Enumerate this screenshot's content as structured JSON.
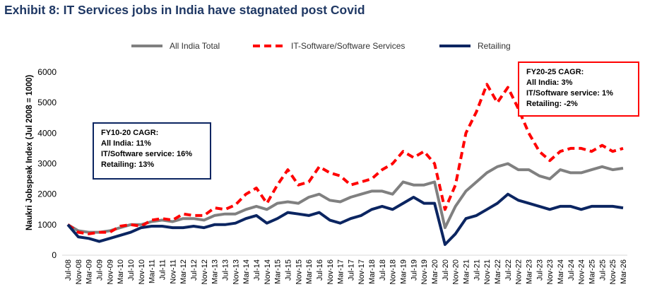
{
  "title": "Exhibit 8: IT Services jobs in India have stagnated post Covid",
  "annotations": [
    {
      "lines": [
        "FY10-20 CAGR:",
        "All India: 11%",
        "IT/Software service: 16%",
        "Retailing: 13%"
      ],
      "border_color": "#0b2561"
    },
    {
      "lines": [
        "FY20-25 CAGR:",
        "All India: 3%",
        "IT/Software service: 1%",
        "Retailing: -2%"
      ],
      "border_color": "#ff0000"
    }
  ],
  "chart_data": {
    "type": "line",
    "title": "Exhibit 8: IT Services jobs in India have stagnated post Covid",
    "xlabel": "",
    "ylabel": "Naukri Jobspeak Index (Jul 2008 = 1000)",
    "ylim": [
      0,
      6000
    ],
    "yticks": [
      "0",
      "1000",
      "2000",
      "3000",
      "4000",
      "5000",
      "6000"
    ],
    "grid": false,
    "legend": "top",
    "x": [
      "Jul-08",
      "Nov-08",
      "Mar-09",
      "Jul-09",
      "Nov-09",
      "Mar-10",
      "Jul-10",
      "Nov-10",
      "Mar-11",
      "Jul-11",
      "Nov-11",
      "Mar-12",
      "Jul-12",
      "Nov-12",
      "Mar-13",
      "Jul-13",
      "Nov-13",
      "Mar-14",
      "Jul-14",
      "Nov-14",
      "Mar-15",
      "Jul-15",
      "Nov-15",
      "Mar-16",
      "Jul-16",
      "Nov-16",
      "Mar-17",
      "Jul-17",
      "Nov-17",
      "Mar-18",
      "Jul-18",
      "Nov-18",
      "Mar-19",
      "Jul-19",
      "Nov-19",
      "Mar-20",
      "Jul-20",
      "Nov-20",
      "Mar-21",
      "Jul-21",
      "Nov-21",
      "Mar-22",
      "Jul-22",
      "Nov-22",
      "Mar-23",
      "Jul-23",
      "Nov-23",
      "Mar-24",
      "Jul-24",
      "Nov-24",
      "Mar-25",
      "Jul-25",
      "Nov-25",
      "Mar-26"
    ],
    "series": [
      {
        "name": "All India Total",
        "color": "#808080",
        "style": "solid",
        "values": [
          1000,
          800,
          750,
          750,
          800,
          900,
          1000,
          1000,
          1100,
          1150,
          1100,
          1200,
          1200,
          1150,
          1300,
          1350,
          1350,
          1500,
          1600,
          1500,
          1700,
          1750,
          1700,
          1900,
          2000,
          1800,
          1750,
          1900,
          2000,
          2100,
          2100,
          2000,
          2400,
          2300,
          2300,
          2400,
          900,
          1600,
          2100,
          2400,
          2700,
          2900,
          3000,
          2800,
          2800,
          2600,
          2500,
          2800,
          2700,
          2700,
          2800,
          2900,
          2800,
          2850
        ]
      },
      {
        "name": "IT-Software/Software Services",
        "color": "#ff0000",
        "style": "dashed",
        "values": [
          1000,
          750,
          700,
          750,
          750,
          950,
          1000,
          950,
          1150,
          1200,
          1150,
          1350,
          1300,
          1300,
          1550,
          1500,
          1650,
          2000,
          2200,
          1700,
          2300,
          2800,
          2300,
          2400,
          2900,
          2700,
          2600,
          2300,
          2400,
          2500,
          2800,
          3000,
          3400,
          3200,
          3400,
          3000,
          1500,
          2300,
          4000,
          4700,
          5600,
          5000,
          5500,
          4800,
          4000,
          3400,
          3100,
          3400,
          3500,
          3500,
          3400,
          3600,
          3400,
          3500
        ]
      },
      {
        "name": "Retailing",
        "color": "#0b2561",
        "style": "solid",
        "values": [
          1000,
          600,
          550,
          450,
          550,
          650,
          750,
          900,
          950,
          950,
          900,
          900,
          950,
          900,
          1000,
          1000,
          1050,
          1200,
          1300,
          1050,
          1200,
          1400,
          1350,
          1300,
          1400,
          1150,
          1050,
          1200,
          1300,
          1500,
          1600,
          1500,
          1700,
          1900,
          1700,
          1700,
          350,
          700,
          1200,
          1300,
          1500,
          1700,
          2000,
          1800,
          1700,
          1600,
          1500,
          1600,
          1600,
          1500,
          1600,
          1600,
          1600,
          1550
        ]
      }
    ]
  }
}
